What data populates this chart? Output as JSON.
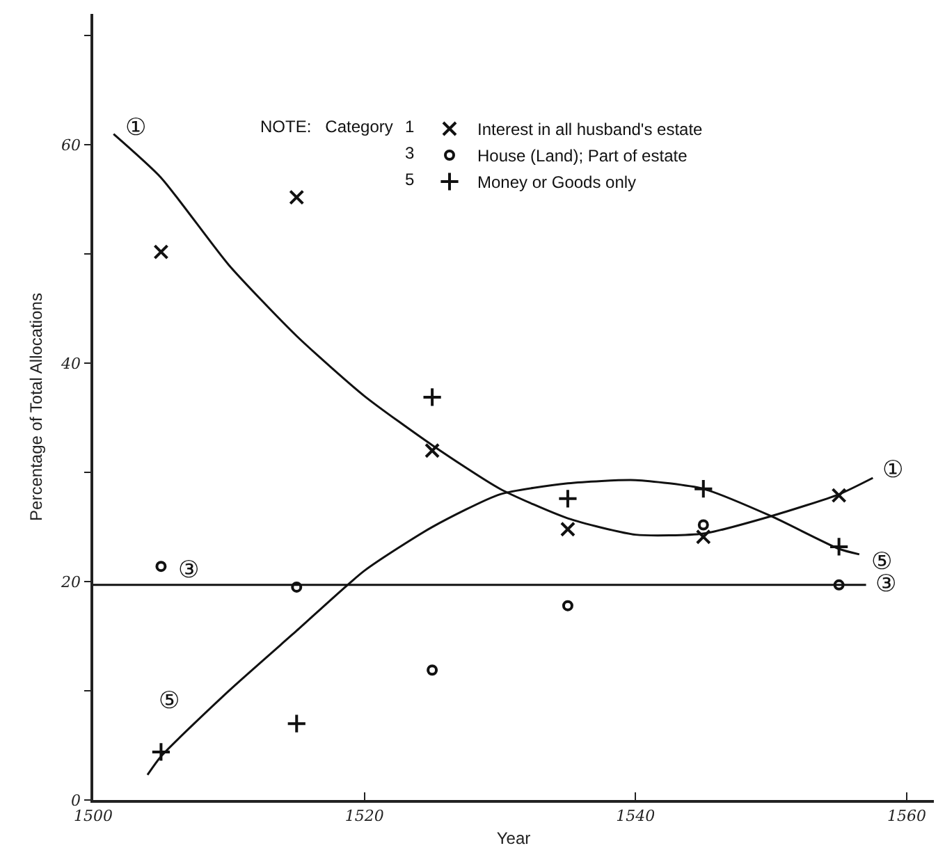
{
  "chart_data": {
    "type": "scatter",
    "xlabel": "Year",
    "ylabel": "Percentage of Total Allocations",
    "legend_title": "NOTE:   Category",
    "x": [
      1505,
      1515,
      1525,
      1535,
      1545,
      1555
    ],
    "series": [
      {
        "name": "Interest in all husband's estate",
        "color": "#111111",
        "marker": "x",
        "values": [
          50.2,
          55.2,
          32,
          24.8,
          24.1,
          27.9
        ]
      },
      {
        "name": "House (Land); Part of estate",
        "color": "#111111",
        "marker": "circle",
        "values": [
          21.4,
          19.5,
          11.9,
          17.8,
          25.2,
          19.7
        ]
      },
      {
        "name": "Money or Goods only",
        "color": "#111111",
        "marker": "cross",
        "values": [
          4.4,
          7,
          36.9,
          27.6,
          28.5,
          23.2
        ]
      },
      {
        "type": "line",
        "color": "#111111",
        "marker": "none",
        "x": [
          1501.5,
          1505,
          1510,
          1515,
          1520,
          1525,
          1530,
          1535,
          1540,
          1545,
          1550,
          1555,
          1557.5
        ],
        "values": [
          61,
          57,
          49,
          42.5,
          37,
          32.5,
          28.5,
          25.8,
          24.3,
          24.4,
          26,
          28,
          29.5
        ]
      },
      {
        "type": "line",
        "color": "#111111",
        "marker": "none",
        "x": [
          1500,
          1557
        ],
        "values": [
          19.7,
          19.7
        ]
      },
      {
        "type": "line",
        "color": "#111111",
        "marker": "none",
        "x": [
          1504,
          1505,
          1510,
          1515,
          1520,
          1525,
          1530,
          1535,
          1540,
          1545,
          1550,
          1555,
          1556.5
        ],
        "values": [
          2.3,
          4,
          10,
          15.5,
          21,
          25,
          28,
          29,
          29.3,
          28.5,
          26,
          23,
          22.5
        ]
      }
    ],
    "annotations": [
      "1",
      "3",
      "5",
      {
        "text": "①",
        "x": 1505,
        "y": 57
      },
      {
        "text": "③",
        "x": 1507,
        "y": 19.7
      },
      {
        "text": "⑤",
        "x": 1505,
        "y": 4
      },
      {
        "text": "①",
        "x": 1557.5,
        "y": 29.5
      },
      {
        "text": "⑤",
        "x": 1556.5,
        "y": 22.5
      },
      {
        "text": "③",
        "x": 1557,
        "y": 19.7
      }
    ],
    "xlim": [
      1500,
      1562
    ],
    "xticks": [
      1500,
      1520,
      1540,
      1560
    ],
    "ylim": [
      0,
      72
    ],
    "yticks": [
      0,
      {
        "value": 10,
        "label": null
      },
      20,
      {
        "value": 30,
        "label": null
      },
      40,
      {
        "value": 50,
        "label": null
      },
      60,
      {
        "value": 70,
        "label": null
      }
    ],
    "grid": false,
    "legend": "top right"
  }
}
